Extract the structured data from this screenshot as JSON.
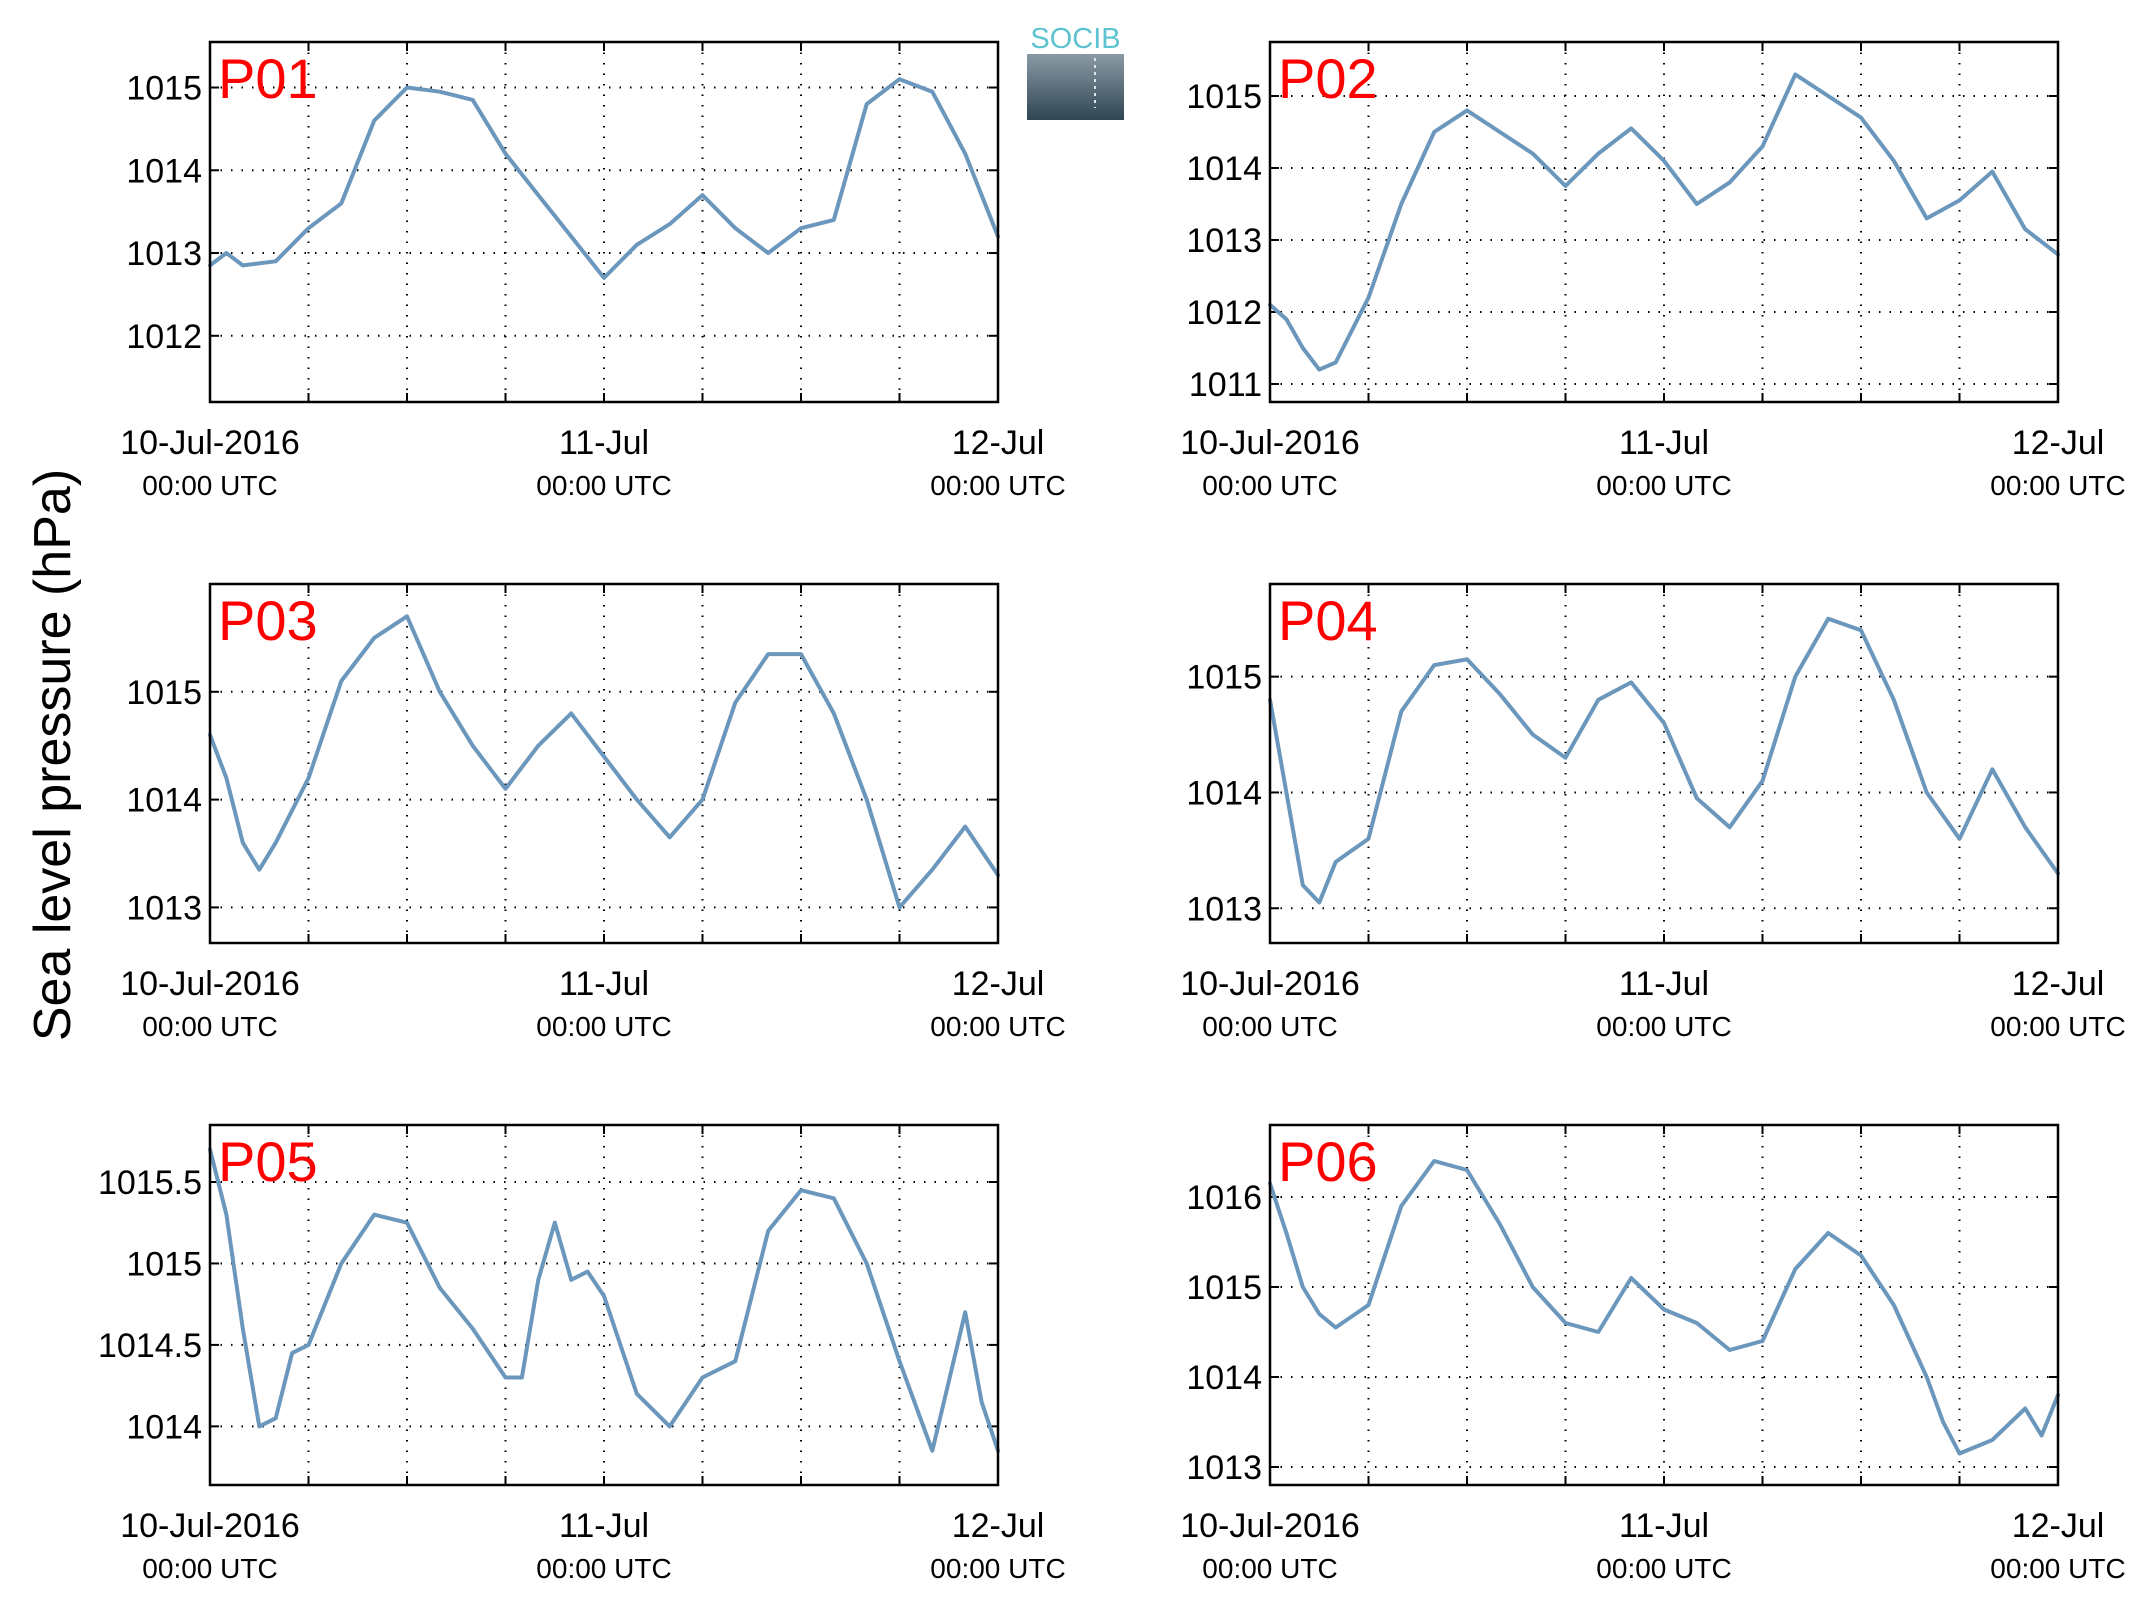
{
  "figure": {
    "ylabel": "Sea level pressure (hPa)",
    "logo_text": "SOCIB",
    "colors": {
      "series": "#6b97bc",
      "panel_label": "#ff0000",
      "axes": "#000000",
      "grid": "#000000",
      "logo_top": "#5ec3d1",
      "logo_grad_top": "#8a9aa5",
      "logo_grad_bottom": "#2f4552"
    }
  },
  "chart_data": [
    {
      "type": "line",
      "label": "P01",
      "xticks": [
        {
          "day": "10-Jul-2016",
          "time": "00:00 UTC"
        },
        {
          "day": "11-Jul",
          "time": "00:00 UTC"
        },
        {
          "day": "12-Jul",
          "time": "00:00 UTC"
        }
      ],
      "xlim": [
        "2016-07-10T00:00",
        "2016-07-12T00:00"
      ],
      "ylim": [
        1011.2,
        1015.55
      ],
      "yticks": [
        "1012",
        "1013",
        "1014",
        "1015"
      ],
      "grid": true,
      "series": [
        {
          "x_hours": [
            0,
            1,
            2,
            4,
            6,
            8,
            10,
            12,
            14,
            16,
            18,
            20,
            22,
            24,
            26,
            28,
            30,
            32,
            34,
            36,
            38,
            40,
            42,
            44,
            46,
            48
          ],
          "values": [
            1012.85,
            1013.0,
            1012.85,
            1012.9,
            1013.3,
            1013.6,
            1014.6,
            1015.0,
            1014.95,
            1014.85,
            1014.2,
            1013.7,
            1013.2,
            1012.7,
            1013.1,
            1013.35,
            1013.7,
            1013.3,
            1013.0,
            1013.3,
            1013.4,
            1014.8,
            1015.1,
            1014.95,
            1014.2,
            1013.2
          ]
        }
      ]
    },
    {
      "type": "line",
      "label": "P02",
      "xticks": [
        {
          "day": "10-Jul-2016",
          "time": "00:00 UTC"
        },
        {
          "day": "11-Jul",
          "time": "00:00 UTC"
        },
        {
          "day": "12-Jul",
          "time": "00:00 UTC"
        }
      ],
      "xlim": [
        "2016-07-10T00:00",
        "2016-07-12T00:00"
      ],
      "ylim": [
        1010.75,
        1015.75
      ],
      "yticks": [
        "1011",
        "1012",
        "1013",
        "1014",
        "1015"
      ],
      "grid": true,
      "series": [
        {
          "x_hours": [
            0,
            1,
            2,
            3,
            4,
            6,
            8,
            10,
            12,
            14,
            16,
            18,
            20,
            22,
            24,
            26,
            28,
            30,
            32,
            34,
            36,
            38,
            40,
            42,
            44,
            46,
            48
          ],
          "values": [
            1012.1,
            1011.9,
            1011.5,
            1011.2,
            1011.3,
            1012.2,
            1013.5,
            1014.5,
            1014.8,
            1014.5,
            1014.2,
            1013.75,
            1014.2,
            1014.55,
            1014.1,
            1013.5,
            1013.8,
            1014.3,
            1015.3,
            1015.0,
            1014.7,
            1014.1,
            1013.3,
            1013.55,
            1013.95,
            1013.15,
            1012.8
          ]
        }
      ]
    },
    {
      "type": "line",
      "label": "P03",
      "xticks": [
        {
          "day": "10-Jul-2016",
          "time": "00:00 UTC"
        },
        {
          "day": "11-Jul",
          "time": "00:00 UTC"
        },
        {
          "day": "12-Jul",
          "time": "00:00 UTC"
        }
      ],
      "xlim": [
        "2016-07-10T00:00",
        "2016-07-12T00:00"
      ],
      "ylim": [
        1012.67,
        1016.0
      ],
      "yticks": [
        "1013",
        "1014",
        "1015"
      ],
      "grid": true,
      "series": [
        {
          "x_hours": [
            0,
            1,
            2,
            3,
            4,
            6,
            8,
            10,
            12,
            14,
            16,
            18,
            20,
            22,
            24,
            26,
            28,
            30,
            32,
            34,
            36,
            38,
            40,
            42,
            44,
            46,
            48
          ],
          "values": [
            1014.6,
            1014.2,
            1013.6,
            1013.35,
            1013.6,
            1014.2,
            1015.1,
            1015.5,
            1015.7,
            1015.0,
            1014.5,
            1014.1,
            1014.5,
            1014.8,
            1014.4,
            1014.0,
            1013.65,
            1014.0,
            1014.9,
            1015.35,
            1015.35,
            1014.8,
            1014.0,
            1013.0,
            1013.35,
            1013.75,
            1013.3
          ]
        }
      ]
    },
    {
      "type": "line",
      "label": "P04",
      "xticks": [
        {
          "day": "10-Jul-2016",
          "time": "00:00 UTC"
        },
        {
          "day": "11-Jul",
          "time": "00:00 UTC"
        },
        {
          "day": "12-Jul",
          "time": "00:00 UTC"
        }
      ],
      "xlim": [
        "2016-07-10T00:00",
        "2016-07-12T00:00"
      ],
      "ylim": [
        1012.7,
        1015.8
      ],
      "yticks": [
        "1013",
        "1014",
        "1015"
      ],
      "grid": true,
      "series": [
        {
          "x_hours": [
            0,
            1,
            2,
            3,
            4,
            6,
            8,
            10,
            12,
            14,
            16,
            18,
            20,
            22,
            24,
            26,
            28,
            30,
            32,
            34,
            36,
            38,
            40,
            42,
            44,
            46,
            48
          ],
          "values": [
            1014.8,
            1014.0,
            1013.2,
            1013.05,
            1013.4,
            1013.6,
            1014.7,
            1015.1,
            1015.15,
            1014.85,
            1014.5,
            1014.3,
            1014.8,
            1014.95,
            1014.6,
            1013.95,
            1013.7,
            1014.1,
            1015.0,
            1015.5,
            1015.4,
            1014.8,
            1014.0,
            1013.6,
            1014.2,
            1013.7,
            1013.3
          ]
        }
      ]
    },
    {
      "type": "line",
      "label": "P05",
      "xticks": [
        {
          "day": "10-Jul-2016",
          "time": "00:00 UTC"
        },
        {
          "day": "11-Jul",
          "time": "00:00 UTC"
        },
        {
          "day": "12-Jul",
          "time": "00:00 UTC"
        }
      ],
      "xlim": [
        "2016-07-10T00:00",
        "2016-07-12T00:00"
      ],
      "ylim": [
        1013.64,
        1015.85
      ],
      "yticks": [
        "1014",
        "1014.5",
        "1015",
        "1015.5"
      ],
      "grid": true,
      "series": [
        {
          "x_hours": [
            0,
            1,
            2,
            3,
            4,
            5,
            6,
            7,
            8,
            10,
            12,
            14,
            16,
            18,
            19,
            20,
            21,
            22,
            23,
            24,
            26,
            28,
            30,
            32,
            34,
            36,
            38,
            40,
            42,
            44,
            46,
            47,
            48
          ],
          "values": [
            1015.7,
            1015.3,
            1014.6,
            1014.0,
            1014.05,
            1014.45,
            1014.5,
            1014.75,
            1015.0,
            1015.3,
            1015.25,
            1014.85,
            1014.6,
            1014.3,
            1014.3,
            1014.9,
            1015.25,
            1014.9,
            1014.95,
            1014.8,
            1014.2,
            1014.0,
            1014.3,
            1014.4,
            1015.2,
            1015.45,
            1015.4,
            1015.0,
            1014.4,
            1013.85,
            1014.7,
            1014.15,
            1013.85
          ]
        }
      ]
    },
    {
      "type": "line",
      "label": "P06",
      "xticks": [
        {
          "day": "10-Jul-2016",
          "time": "00:00 UTC"
        },
        {
          "day": "11-Jul",
          "time": "00:00 UTC"
        },
        {
          "day": "12-Jul",
          "time": "00:00 UTC"
        }
      ],
      "xlim": [
        "2016-07-10T00:00",
        "2016-07-12T00:00"
      ],
      "ylim": [
        1012.8,
        1016.8
      ],
      "yticks": [
        "1013",
        "1014",
        "1015",
        "1016"
      ],
      "grid": true,
      "series": [
        {
          "x_hours": [
            0,
            1,
            2,
            3,
            4,
            6,
            8,
            10,
            12,
            14,
            16,
            18,
            20,
            22,
            24,
            26,
            28,
            30,
            32,
            34,
            36,
            38,
            40,
            41,
            42,
            44,
            46,
            47,
            48
          ],
          "values": [
            1016.15,
            1015.6,
            1015.0,
            1014.7,
            1014.55,
            1014.8,
            1015.9,
            1016.4,
            1016.3,
            1015.7,
            1015.0,
            1014.6,
            1014.5,
            1015.1,
            1014.75,
            1014.6,
            1014.3,
            1014.4,
            1015.2,
            1015.6,
            1015.35,
            1014.8,
            1014.0,
            1013.5,
            1013.15,
            1013.3,
            1013.65,
            1013.35,
            1013.8
          ]
        }
      ]
    }
  ]
}
